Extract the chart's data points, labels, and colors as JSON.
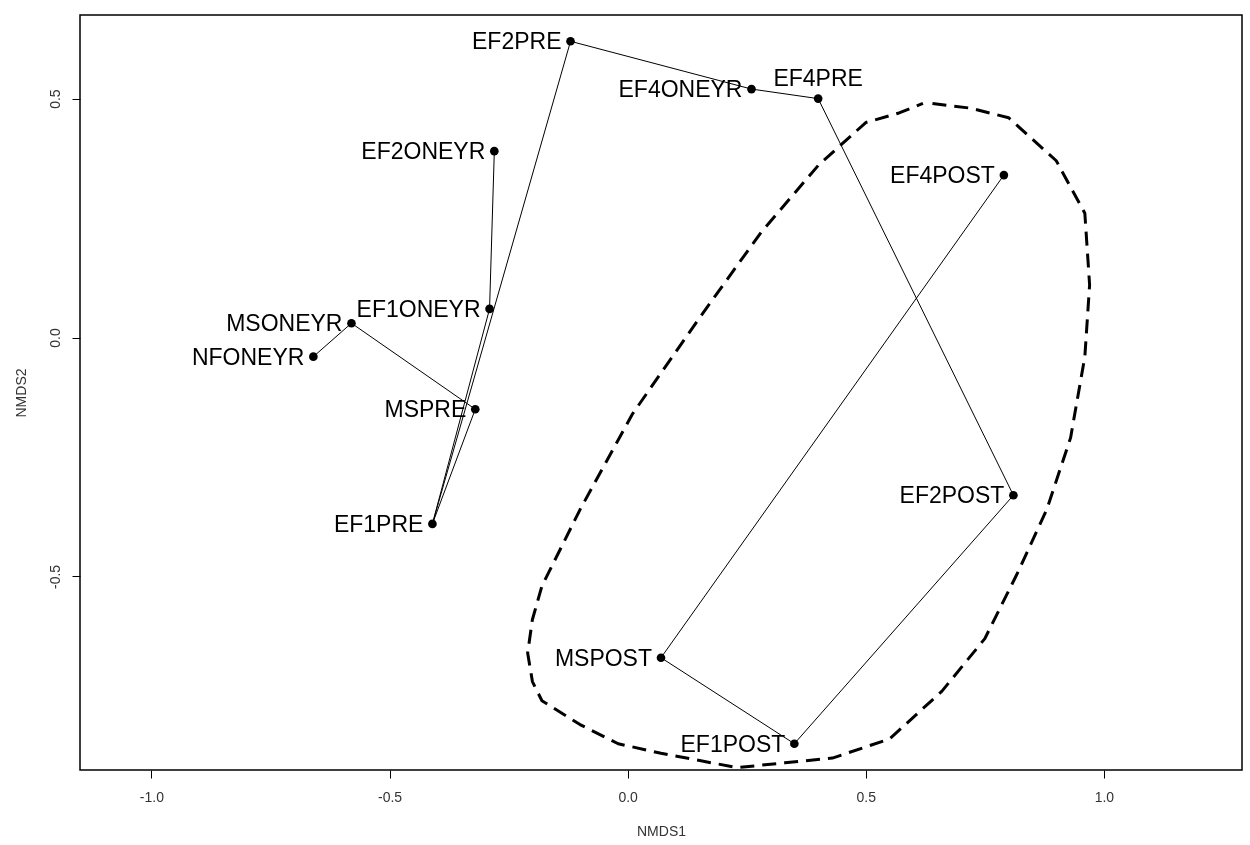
{
  "chart_data": {
    "type": "scatter",
    "xlabel": "NMDS1",
    "ylabel": "NMDS2",
    "xlim": [
      -1.15,
      1.29
    ],
    "ylim": [
      -0.905,
      0.675
    ],
    "xticks": [
      {
        "value": -1,
        "label": "-1.0"
      },
      -0.5,
      {
        "value": 0,
        "label": "0.0"
      },
      0.5,
      {
        "value": 1,
        "label": "1.0"
      }
    ],
    "yticks": [
      -0.5,
      {
        "value": 0,
        "label": "0.0"
      },
      0.5
    ],
    "series": [
      {
        "type": "line",
        "color": "#000000",
        "line_style": "solid",
        "x": [
          -0.41,
          -0.12,
          0.26,
          0.4,
          0.81,
          0.35,
          0.07,
          0.79
        ],
        "values": [
          -0.39,
          0.62,
          0.52,
          0.5,
          -0.33,
          -0.85,
          -0.67,
          0.34
        ]
      },
      {
        "type": "line",
        "color": "#000000",
        "line_style": "solid",
        "x": [
          -0.28,
          -0.29,
          -0.41,
          -0.32,
          -0.58,
          -0.66
        ],
        "values": [
          0.39,
          0.06,
          -0.39,
          -0.15,
          0.03,
          -0.04
        ]
      },
      {
        "type": "line",
        "color": "#000000",
        "line_style": "dashed",
        "x": [
          0.64,
          0.72,
          0.8,
          0.9,
          0.96,
          0.97,
          0.96,
          0.93,
          0.88,
          0.82,
          0.75,
          0.66,
          0.55,
          0.43,
          0.33,
          0.23,
          0.07,
          -0.02,
          -0.1,
          -0.18,
          -0.2,
          -0.21,
          -0.2,
          -0.18,
          -0.1,
          0.01,
          0.15,
          0.28,
          0.4,
          0.5,
          0.57,
          0.62
        ],
        "values": [
          0.49,
          0.48,
          0.46,
          0.37,
          0.26,
          0.11,
          -0.04,
          -0.21,
          -0.36,
          -0.49,
          -0.63,
          -0.74,
          -0.84,
          -0.88,
          -0.89,
          -0.9,
          -0.87,
          -0.85,
          -0.81,
          -0.76,
          -0.72,
          -0.66,
          -0.59,
          -0.52,
          -0.36,
          -0.16,
          0.04,
          0.22,
          0.36,
          0.45,
          0.47,
          0.49
        ]
      },
      {
        "type": "scatter",
        "color": "#000000",
        "marker": "circle",
        "x": [
          -0.12,
          0.26,
          0.4,
          -0.28,
          0.79,
          -0.29,
          -0.58,
          -0.66,
          -0.32,
          -0.41,
          0.81,
          0.07,
          0.35
        ],
        "values": [
          0.62,
          0.52,
          0.5,
          0.39,
          0.34,
          0.06,
          0.03,
          -0.04,
          -0.15,
          -0.39,
          -0.33,
          -0.67,
          -0.85
        ]
      }
    ],
    "annotations": [
      {
        "text": "EF2PRE",
        "x": -0.12,
        "y": 0.62
      },
      {
        "text": "EF4ONEYR",
        "x": 0.26,
        "y": 0.52
      },
      {
        "text": "EF4PRE",
        "x": 0.4,
        "y": 0.5
      },
      {
        "text": "EF2ONEYR",
        "x": -0.28,
        "y": 0.39
      },
      {
        "text": "EF4POST",
        "x": 0.79,
        "y": 0.34
      },
      {
        "text": "EF1ONEYR",
        "x": -0.29,
        "y": 0.06
      },
      {
        "text": "MSONEYR",
        "x": -0.58,
        "y": 0.03
      },
      {
        "text": "NFONEYR",
        "x": -0.66,
        "y": -0.04
      },
      {
        "text": "MSPRE",
        "x": -0.32,
        "y": -0.15
      },
      {
        "text": "EF1PRE",
        "x": -0.41,
        "y": -0.39
      },
      {
        "text": "EF2POST",
        "x": 0.81,
        "y": -0.33
      },
      {
        "text": "MSPOST",
        "x": 0.07,
        "y": -0.67
      },
      {
        "text": "EF1POST",
        "x": 0.35,
        "y": -0.85
      }
    ]
  }
}
